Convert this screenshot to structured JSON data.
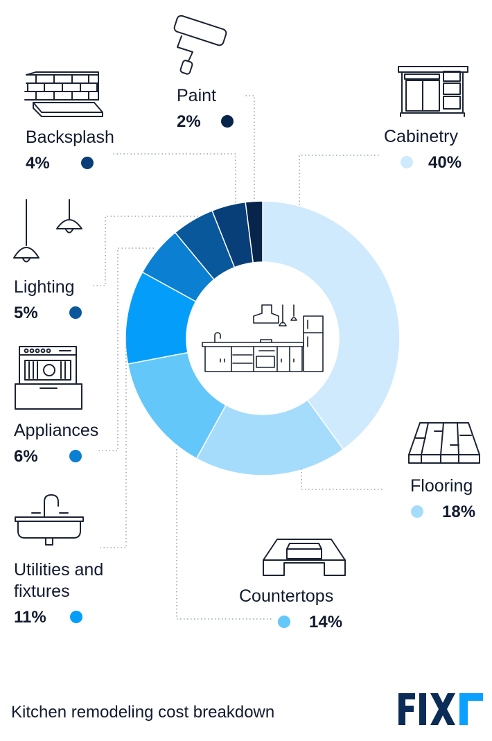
{
  "chart_data": {
    "type": "donut",
    "title": "",
    "slices": [
      {
        "label": "Cabinetry",
        "value": 40,
        "display": "40%",
        "color": "#cfeafd"
      },
      {
        "label": "Flooring",
        "value": 18,
        "display": "18%",
        "color": "#a6dcfb"
      },
      {
        "label": "Countertops",
        "value": 14,
        "display": "14%",
        "color": "#64c7fa"
      },
      {
        "label": "Utilities and fixtures",
        "value": 11,
        "display": "11%",
        "color": "#049efa"
      },
      {
        "label": "Appliances",
        "value": 6,
        "display": "6%",
        "color": "#0b7fd1"
      },
      {
        "label": "Lighting",
        "value": 5,
        "display": "5%",
        "color": "#0a589c"
      },
      {
        "label": "Backsplash",
        "value": 4,
        "display": "4%",
        "color": "#083f78"
      },
      {
        "label": "Paint",
        "value": 2,
        "display": "2%",
        "color": "#07244a"
      }
    ],
    "start_angle_deg": 0,
    "direction": "clockwise"
  },
  "caption": "Kitchen remodeling cost breakdown",
  "brand": {
    "logo_text": "FIXR",
    "color": "#0a2c57"
  }
}
